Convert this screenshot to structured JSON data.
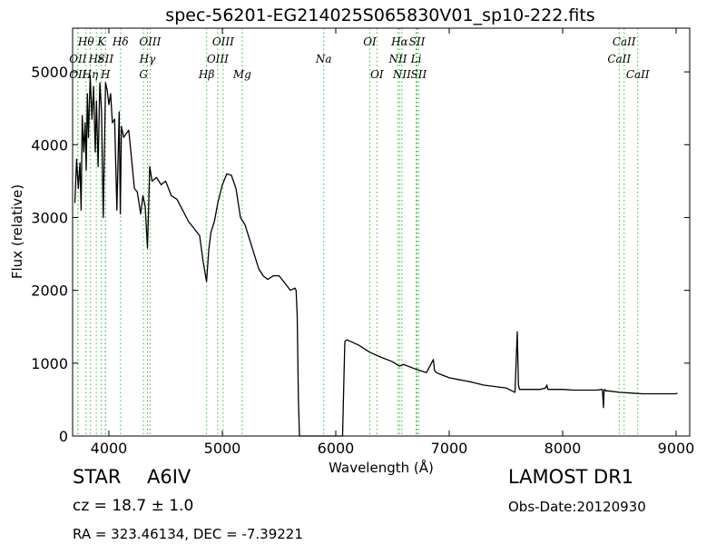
{
  "chart_data": {
    "type": "line",
    "title": "spec-56201-EG214025S065830V01_sp10-222.fits",
    "xlabel": "Wavelength (Å)",
    "ylabel": "Flux (relative)",
    "xlim": [
      3680,
      9120
    ],
    "ylim": [
      0,
      5600
    ],
    "xticks": [
      "4000",
      "5000",
      "6000",
      "7000",
      "8000",
      "9000"
    ],
    "yticks": [
      "0",
      "1000",
      "2000",
      "3000",
      "4000",
      "5000"
    ],
    "grid": false,
    "line_color": "#000000",
    "marker_color": "#3cb83c",
    "series": [
      {
        "x": [
          3700,
          3715,
          3730,
          3745,
          3755,
          3765,
          3778,
          3790,
          3800,
          3810,
          3820,
          3835,
          3850,
          3865,
          3880,
          3890,
          3905,
          3920,
          3935,
          3950,
          3970,
          3985,
          4000,
          4015,
          4030,
          4050,
          4070,
          4090,
          4101,
          4110,
          4130,
          4150,
          4175,
          4200,
          4225,
          4250,
          4280,
          4300,
          4320,
          4340,
          4360,
          4380,
          4420,
          4460,
          4500,
          4550,
          4600,
          4650,
          4700,
          4750,
          4800,
          4830,
          4861,
          4880,
          4900,
          4930,
          4960,
          5000,
          5040,
          5080,
          5120,
          5160,
          5200,
          5240,
          5280,
          5320,
          5360,
          5400,
          5450,
          5500,
          5550,
          5600,
          5640,
          5650,
          5660,
          5670,
          5680,
          5700,
          5800,
          5900,
          6000,
          6050,
          6060,
          6070,
          6080,
          6100,
          6200,
          6300,
          6400,
          6500,
          6560,
          6600,
          6700,
          6800,
          6860,
          6870,
          6880,
          6900,
          7000,
          7100,
          7200,
          7300,
          7400,
          7500,
          7580,
          7600,
          7610,
          7620,
          7700,
          7800,
          7850,
          7860,
          7870,
          7900,
          8000,
          8100,
          8200,
          8300,
          8350,
          8360,
          8365,
          8370,
          8380,
          8400,
          8500,
          8600,
          8700,
          8800,
          8900,
          9000,
          9010
        ],
        "values": [
          3200,
          3800,
          3400,
          3750,
          3100,
          4400,
          3900,
          4300,
          3650,
          4700,
          4100,
          4950,
          4350,
          4800,
          3900,
          4600,
          3700,
          4850,
          4450,
          3000,
          4850,
          4750,
          4550,
          4700,
          4300,
          4350,
          3100,
          4450,
          3050,
          4250,
          4100,
          4150,
          4200,
          3800,
          3400,
          3350,
          3050,
          3300,
          3150,
          2580,
          3700,
          3500,
          3550,
          3450,
          3500,
          3300,
          3250,
          3100,
          2950,
          2850,
          2750,
          2400,
          2120,
          2550,
          2800,
          2950,
          3200,
          3450,
          3600,
          3580,
          3400,
          3000,
          2900,
          2700,
          2500,
          2300,
          2200,
          2150,
          2200,
          2200,
          2100,
          2000,
          2030,
          2000,
          1650,
          500,
          0,
          0,
          0,
          0,
          0,
          0,
          0,
          700,
          1300,
          1320,
          1250,
          1150,
          1080,
          1020,
          960,
          980,
          920,
          870,
          1050,
          900,
          880,
          860,
          800,
          770,
          740,
          700,
          680,
          660,
          600,
          1430,
          700,
          640,
          640,
          640,
          660,
          700,
          640,
          640,
          640,
          630,
          630,
          630,
          640,
          390,
          620,
          640,
          620,
          620,
          600,
          590,
          580,
          580,
          580,
          580,
          590
        ]
      }
    ],
    "spectral_lines": [
      {
        "name": "OII",
        "wavelength": 3727,
        "row": 2
      },
      {
        "name": "OII",
        "wavelength": 3727,
        "row": 3
      },
      {
        "name": "Hθ",
        "wavelength": 3798,
        "row": 1
      },
      {
        "name": "Hη",
        "wavelength": 3835,
        "row": 3
      },
      {
        "name": "K",
        "wavelength": 3934,
        "row": 1
      },
      {
        "name": "Hε",
        "wavelength": 3889,
        "row": 2
      },
      {
        "name": "SII",
        "wavelength": 3970,
        "row": 2
      },
      {
        "name": "H",
        "wavelength": 3970,
        "row": 3
      },
      {
        "name": "Hδ",
        "wavelength": 4102,
        "row": 1
      },
      {
        "name": "Hγ",
        "wavelength": 4340,
        "row": 2
      },
      {
        "name": "G",
        "wavelength": 4305,
        "row": 3
      },
      {
        "name": "OIII",
        "wavelength": 4363,
        "row": 1
      },
      {
        "name": "Hβ",
        "wavelength": 4861,
        "row": 3
      },
      {
        "name": "OIII",
        "wavelength": 4959,
        "row": 2
      },
      {
        "name": "OIII",
        "wavelength": 5007,
        "row": 1
      },
      {
        "name": "Mg",
        "wavelength": 5175,
        "row": 3
      },
      {
        "name": "Na",
        "wavelength": 5894,
        "row": 2
      },
      {
        "name": "OI",
        "wavelength": 6300,
        "row": 1
      },
      {
        "name": "OI",
        "wavelength": 6363,
        "row": 3
      },
      {
        "name": "NII",
        "wavelength": 6548,
        "row": 2
      },
      {
        "name": "NII",
        "wavelength": 6583,
        "row": 3
      },
      {
        "name": "Hα",
        "wavelength": 6563,
        "row": 1
      },
      {
        "name": "SII",
        "wavelength": 6716,
        "row": 1
      },
      {
        "name": "SII",
        "wavelength": 6731,
        "row": 3
      },
      {
        "name": "Li",
        "wavelength": 6708,
        "row": 2
      },
      {
        "name": "CaII",
        "wavelength": 8542,
        "row": 1
      },
      {
        "name": "CaII",
        "wavelength": 8498,
        "row": 2
      },
      {
        "name": "CaII",
        "wavelength": 8662,
        "row": 3
      }
    ]
  },
  "info": {
    "object_class": "STAR",
    "subclass": "A6IV",
    "survey": "LAMOST DR1",
    "redshift": "cz = 18.7 ± 1.0",
    "obs_date": "Obs-Date:20120930",
    "coords": "RA = 323.46134, DEC = -7.39221"
  }
}
